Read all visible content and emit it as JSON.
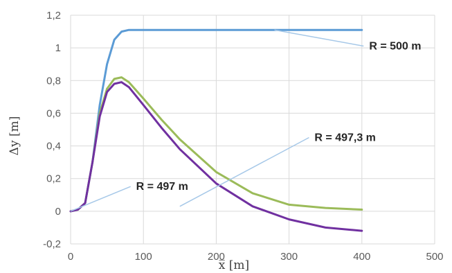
{
  "chart_data": {
    "type": "line",
    "xlabel": "x̅ [m]",
    "ylabel": "Δy [m]",
    "xlim": [
      0,
      500
    ],
    "ylim": [
      -0.2,
      1.2
    ],
    "x_ticks": [
      "0",
      "100",
      "200",
      "300",
      "400",
      "500"
    ],
    "y_ticks": [
      "-0,2",
      "0",
      "0,2",
      "0,4",
      "0,6",
      "0,8",
      "1",
      "1,2"
    ],
    "grid": true,
    "legend": "none",
    "series": [
      {
        "name": "R = 500 m",
        "color": "#5b9bd5",
        "x": [
          0,
          10,
          20,
          30,
          40,
          50,
          60,
          70,
          80,
          100,
          150,
          200,
          250,
          300,
          350,
          400
        ],
        "y": [
          0,
          0.01,
          0.05,
          0.3,
          0.65,
          0.9,
          1.05,
          1.1,
          1.11,
          1.11,
          1.11,
          1.11,
          1.11,
          1.11,
          1.11,
          1.11
        ]
      },
      {
        "name": "R = 497,3 m",
        "color": "#9bbb59",
        "x": [
          0,
          10,
          20,
          30,
          40,
          50,
          60,
          70,
          80,
          100,
          125,
          150,
          200,
          250,
          300,
          350,
          400
        ],
        "y": [
          0,
          0.01,
          0.05,
          0.3,
          0.6,
          0.75,
          0.81,
          0.82,
          0.79,
          0.69,
          0.56,
          0.44,
          0.24,
          0.11,
          0.04,
          0.02,
          0.01
        ]
      },
      {
        "name": "R = 497 m",
        "color": "#7030a0",
        "x": [
          0,
          10,
          20,
          30,
          40,
          50,
          60,
          70,
          80,
          100,
          125,
          150,
          200,
          250,
          300,
          350,
          400
        ],
        "y": [
          0,
          0.01,
          0.05,
          0.3,
          0.58,
          0.73,
          0.78,
          0.79,
          0.76,
          0.65,
          0.51,
          0.38,
          0.17,
          0.03,
          -0.05,
          -0.1,
          -0.12
        ]
      }
    ],
    "annotations": [
      {
        "text": "R = 500 m",
        "series": "R = 500 m",
        "x": 410,
        "y": 0.99,
        "anchor_x": 280,
        "anchor_y": 1.11
      },
      {
        "text": "R = 497,3 m",
        "series": "R = 497,3 m",
        "x": 335,
        "y": 0.43,
        "anchor_x": 150,
        "anchor_y": 0.03
      },
      {
        "text": "R = 497 m",
        "series": "R = 497 m",
        "x": 90,
        "y": 0.13,
        "anchor_x": 0,
        "anchor_y": 0
      }
    ]
  }
}
